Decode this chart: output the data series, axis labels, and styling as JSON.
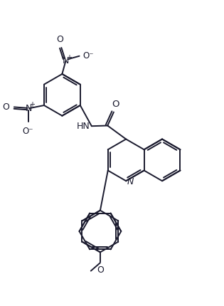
{
  "bg_color": "#ffffff",
  "line_color": "#1a1a2e",
  "line_width": 1.4,
  "fig_width": 3.15,
  "fig_height": 4.31,
  "dpi": 100,
  "xlim": [
    -0.5,
    8.5
  ],
  "ylim": [
    -0.5,
    9.5
  ]
}
